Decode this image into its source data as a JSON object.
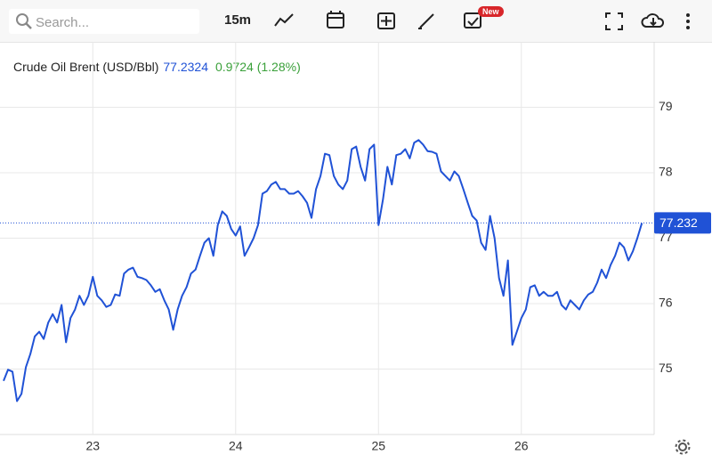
{
  "ui": {
    "search_placeholder": "Search...",
    "interval": "15m",
    "badge": "New"
  },
  "chart_data": {
    "type": "line",
    "title": "Crude Oil Brent (USD/Bbl)",
    "legend_price": 77.2324,
    "change": "0.9724 (1.28%)",
    "last_price": {
      "value": 77.2324,
      "label": "77.232"
    },
    "xlim": [
      22.35,
      26.93
    ],
    "xticks": [
      23,
      24,
      25,
      26
    ],
    "ylim": [
      74,
      80
    ],
    "yticks": [
      75,
      76,
      77,
      78,
      79
    ],
    "grid": true,
    "x": [
      22.375,
      22.40625,
      22.4375,
      22.46875,
      22.5,
      22.53125,
      22.5625,
      22.59375,
      22.625,
      22.65625,
      22.6875,
      22.71875,
      22.75,
      22.78125,
      22.8125,
      22.84375,
      22.875,
      22.90625,
      22.9375,
      22.96875,
      23,
      23.03125,
      23.0625,
      23.09375,
      23.125,
      23.15625,
      23.1875,
      23.21875,
      23.25,
      23.28125,
      23.3125,
      23.34375,
      23.375,
      23.40625,
      23.4375,
      23.46875,
      23.5,
      23.53125,
      23.5625,
      23.59375,
      23.625,
      23.65625,
      23.6875,
      23.71875,
      23.75,
      23.78125,
      23.8125,
      23.84375,
      23.875,
      23.90625,
      23.9375,
      23.96875,
      24,
      24.03125,
      24.0625,
      24.09375,
      24.125,
      24.15625,
      24.1875,
      24.21875,
      24.25,
      24.28125,
      24.3125,
      24.34375,
      24.375,
      24.40625,
      24.4375,
      24.46875,
      24.5,
      24.53125,
      24.5625,
      24.59375,
      24.625,
      24.65625,
      24.6875,
      24.71875,
      24.75,
      24.78125,
      24.8125,
      24.84375,
      24.875,
      24.90625,
      24.9375,
      24.96875,
      25,
      25.03125,
      25.0625,
      25.09375,
      25.125,
      25.15625,
      25.1875,
      25.21875,
      25.25,
      25.28125,
      25.3125,
      25.34375,
      25.375,
      25.40625,
      25.4375,
      25.46875,
      25.5,
      25.53125,
      25.5625,
      25.59375,
      25.625,
      25.65625,
      25.6875,
      25.71875,
      25.75,
      25.78125,
      25.8125,
      25.84375,
      25.875,
      25.90625,
      25.9375,
      25.96875,
      26,
      26.03125,
      26.0625,
      26.09375,
      26.125,
      26.15625,
      26.1875,
      26.21875,
      26.25,
      26.28125,
      26.3125,
      26.34375,
      26.375,
      26.40625,
      26.4375,
      26.46875,
      26.5,
      26.53125,
      26.5625,
      26.59375,
      26.625,
      26.65625,
      26.6875,
      26.71875,
      26.75,
      26.78125,
      26.8125,
      26.84375
    ],
    "series": [
      {
        "name": "Crude Oil Brent",
        "color": "#2052d6",
        "values": [
          74.82,
          74.99,
          74.96,
          74.51,
          74.62,
          75.03,
          75.23,
          75.5,
          75.57,
          75.46,
          75.71,
          75.84,
          75.71,
          75.98,
          75.41,
          75.78,
          75.91,
          76.12,
          75.98,
          76.12,
          76.41,
          76.12,
          76.05,
          75.95,
          75.98,
          76.14,
          76.12,
          76.46,
          76.52,
          76.55,
          76.41,
          76.39,
          76.36,
          76.28,
          76.18,
          76.22,
          76.05,
          75.91,
          75.6,
          75.91,
          76.12,
          76.25,
          76.46,
          76.52,
          76.73,
          76.93,
          77.0,
          76.73,
          77.2,
          77.41,
          77.34,
          77.14,
          77.04,
          77.18,
          76.73,
          76.86,
          77.0,
          77.2,
          77.68,
          77.72,
          77.82,
          77.86,
          77.75,
          77.75,
          77.68,
          77.68,
          77.72,
          77.64,
          77.54,
          77.31,
          77.75,
          77.95,
          78.29,
          78.27,
          77.95,
          77.82,
          77.75,
          77.88,
          78.36,
          78.4,
          78.09,
          77.88,
          78.36,
          78.43,
          77.2,
          77.59,
          78.09,
          77.82,
          78.27,
          78.29,
          78.36,
          78.22,
          78.46,
          78.5,
          78.43,
          78.33,
          78.32,
          78.29,
          78.02,
          77.95,
          77.88,
          78.02,
          77.95,
          77.75,
          77.54,
          77.34,
          77.27,
          76.93,
          76.82,
          77.34,
          77.0,
          76.39,
          76.12,
          76.66,
          75.37,
          75.57,
          75.78,
          75.91,
          76.25,
          76.28,
          76.12,
          76.18,
          76.12,
          76.12,
          76.18,
          75.98,
          75.91,
          76.05,
          75.98,
          75.91,
          76.05,
          76.14,
          76.18,
          76.32,
          76.52,
          76.39,
          76.59,
          76.73,
          76.93,
          76.86,
          76.66,
          76.8,
          77.0,
          77.23
        ]
      }
    ]
  }
}
